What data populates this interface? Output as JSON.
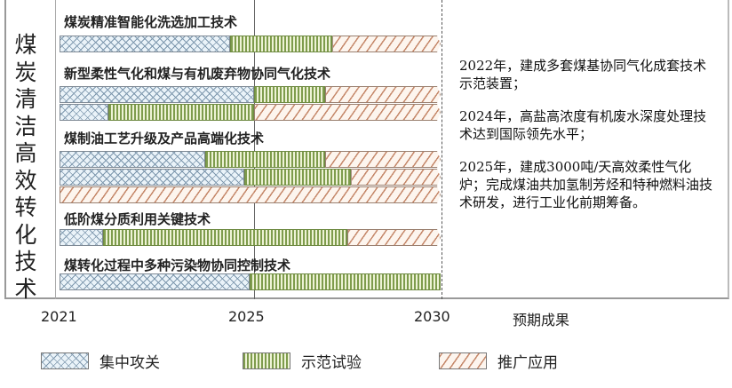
{
  "chart_data": {
    "type": "gantt-bar",
    "vertical_title": "煤炭清洁高效转化技术",
    "x_ticks": [
      "2021",
      "2025",
      "2030"
    ],
    "xlim": [
      2021,
      2030
    ],
    "results_header": "预期成果",
    "phases": [
      {
        "key": "focus",
        "name": "集中攻关",
        "color": "#7d97ad"
      },
      {
        "key": "demo",
        "name": "示范试验",
        "color": "#7e9c4c"
      },
      {
        "key": "promo",
        "name": "推广应用",
        "color": "#c5886a"
      }
    ],
    "groups": [
      {
        "title": "煤炭精准智能化洗选加工技术",
        "bars": [
          [
            {
              "phase": "focus",
              "start": 2021,
              "end": 2024.5
            },
            {
              "phase": "demo",
              "start": 2024.5,
              "end": 2027.1
            },
            {
              "phase": "promo",
              "start": 2027.1,
              "end": 2030
            }
          ]
        ]
      },
      {
        "title": "新型柔性气化和煤与有机废弃物协同气化技术",
        "bars": [
          [
            {
              "phase": "focus",
              "start": 2021,
              "end": 2025
            },
            {
              "phase": "demo",
              "start": 2025,
              "end": 2026.9
            },
            {
              "phase": "promo",
              "start": 2026.9,
              "end": 2030
            }
          ],
          [
            {
              "phase": "focus",
              "start": 2021,
              "end": 2022
            },
            {
              "phase": "demo",
              "start": 2022,
              "end": 2025
            },
            {
              "phase": "promo",
              "start": 2025,
              "end": 2030
            }
          ]
        ]
      },
      {
        "title": "煤制油工艺升级及产品高端化技术",
        "bars": [
          [
            {
              "phase": "focus",
              "start": 2021,
              "end": 2024
            },
            {
              "phase": "demo",
              "start": 2024,
              "end": 2026.9
            },
            {
              "phase": "promo",
              "start": 2026.9,
              "end": 2030
            }
          ],
          [
            {
              "phase": "focus",
              "start": 2021,
              "end": 2024.8
            },
            {
              "phase": "demo",
              "start": 2024.8,
              "end": 2027.6
            },
            {
              "phase": "promo",
              "start": 2027.6,
              "end": 2030
            }
          ],
          [
            {
              "phase": "promo",
              "start": 2021,
              "end": 2030
            }
          ]
        ]
      },
      {
        "title": "低阶煤分质利用关键技术",
        "bars": [
          [
            {
              "phase": "focus",
              "start": 2021,
              "end": 2021.9
            },
            {
              "phase": "demo",
              "start": 2021.9,
              "end": 2027.5
            },
            {
              "phase": "promo",
              "start": 2027.5,
              "end": 2030
            }
          ]
        ]
      },
      {
        "title": "煤转化过程中多种污染物协同控制技术",
        "bars": [
          [
            {
              "phase": "focus",
              "start": 2021,
              "end": 2024.9
            },
            {
              "phase": "demo",
              "start": 2024.9,
              "end": 2030
            }
          ]
        ]
      }
    ],
    "results": [
      "2022年，建成多套煤基协同气化成套技术示范装置；",
      "2024年，高盐高浓度有机废水深度处理技术达到国际领先水平；",
      "2025年，建成3000吨/天高效柔性气化炉；完成煤油共加氢制芳烃和特种燃料油技术研发，进行工业化前期筹备。"
    ]
  }
}
